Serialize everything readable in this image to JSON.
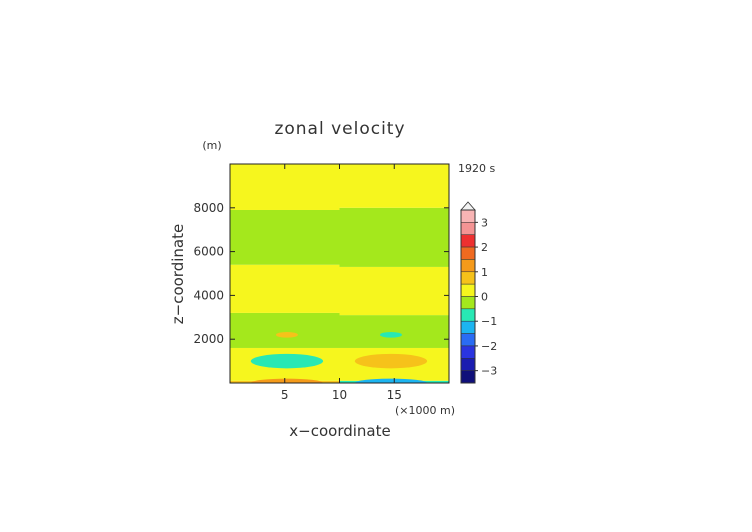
{
  "chart_data": {
    "type": "heatmap",
    "title": "zonal velocity",
    "time_label": "1920 s",
    "xlabel": "x−coordinate",
    "ylabel": "z−coordinate",
    "x_unit": "(×1000 m)",
    "y_unit": "(m)",
    "xlim": [
      0,
      20
    ],
    "ylim": [
      0,
      10000
    ],
    "x_ticks": [
      5,
      10,
      15
    ],
    "y_ticks": [
      2000,
      4000,
      6000,
      8000
    ],
    "colorbar": {
      "ticks": [
        "3",
        "2",
        "1",
        "0",
        "−1",
        "−2",
        "−3"
      ],
      "levels": [
        {
          "lo": 3.0,
          "hi": 3.5,
          "color": "#f8b4b4"
        },
        {
          "lo": 2.5,
          "hi": 3.0,
          "color": "#f49494"
        },
        {
          "lo": 2.0,
          "hi": 2.5,
          "color": "#ee3030"
        },
        {
          "lo": 1.5,
          "hi": 2.0,
          "color": "#f06a20"
        },
        {
          "lo": 1.0,
          "hi": 1.5,
          "color": "#f59a1a"
        },
        {
          "lo": 0.5,
          "hi": 1.0,
          "color": "#f6c21a"
        },
        {
          "lo": 0.0,
          "hi": 0.5,
          "color": "#f6f61e"
        },
        {
          "lo": -0.5,
          "hi": 0.0,
          "color": "#a4e81c"
        },
        {
          "lo": -1.0,
          "hi": -0.5,
          "color": "#28e8b4"
        },
        {
          "lo": -1.5,
          "hi": -1.0,
          "color": "#1cb4f0"
        },
        {
          "lo": -2.0,
          "hi": -1.5,
          "color": "#2a6cf4"
        },
        {
          "lo": -2.5,
          "hi": -2.0,
          "color": "#2a34e0"
        },
        {
          "lo": -3.0,
          "hi": -2.5,
          "color": "#1a1cb0"
        },
        {
          "lo": -3.5,
          "hi": -3.0,
          "color": "#10107a"
        }
      ]
    },
    "bands": [
      {
        "x0": 0,
        "x1": 10,
        "z0": 0,
        "z1": 100,
        "value": 0.7
      },
      {
        "x0": 10,
        "x1": 20,
        "z0": 0,
        "z1": 100,
        "value": -0.7
      },
      {
        "x0": 0,
        "x1": 10,
        "z0": 100,
        "z1": 1600,
        "value": 0.25
      },
      {
        "x0": 10,
        "x1": 20,
        "z0": 100,
        "z1": 1600,
        "value": 0.25
      },
      {
        "x0": 0,
        "x1": 10,
        "z0": 1600,
        "z1": 3200,
        "value": -0.25
      },
      {
        "x0": 10,
        "x1": 20,
        "z0": 1600,
        "z1": 3100,
        "value": -0.25
      },
      {
        "x0": 0,
        "x1": 10,
        "z0": 3200,
        "z1": 5400,
        "value": 0.25
      },
      {
        "x0": 10,
        "x1": 20,
        "z0": 3100,
        "z1": 5300,
        "value": 0.25
      },
      {
        "x0": 0,
        "x1": 10,
        "z0": 5400,
        "z1": 7900,
        "value": -0.25
      },
      {
        "x0": 10,
        "x1": 20,
        "z0": 5300,
        "z1": 8000,
        "value": -0.25
      },
      {
        "x0": 0,
        "x1": 10,
        "z0": 7900,
        "z1": 10000,
        "value": 0.25
      },
      {
        "x0": 10,
        "x1": 20,
        "z0": 8000,
        "z1": 10000,
        "value": 0.25
      }
    ],
    "blobs": [
      {
        "cx": 5.2,
        "cz": 1000,
        "rx": 3.3,
        "rz": 330,
        "value": -0.75
      },
      {
        "cx": 14.7,
        "cz": 1000,
        "rx": 3.3,
        "rz": 330,
        "value": 0.75
      },
      {
        "cx": 5.2,
        "cz": 2200,
        "rx": 1.0,
        "rz": 130,
        "value": 0.75
      },
      {
        "cx": 14.7,
        "cz": 2200,
        "rx": 1.0,
        "rz": 130,
        "value": -0.75
      },
      {
        "cx": 5.2,
        "cz": 0,
        "rx": 3.3,
        "rz": 200,
        "value": 1.2
      },
      {
        "cx": 14.7,
        "cz": 0,
        "rx": 3.3,
        "rz": 200,
        "value": -1.2
      }
    ]
  }
}
